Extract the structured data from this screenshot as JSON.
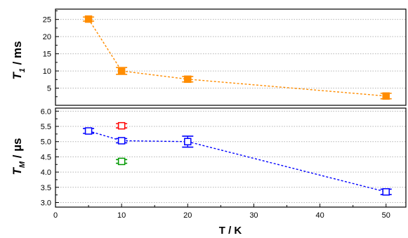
{
  "chart_data": [
    {
      "type": "scatter",
      "panel": "top",
      "ylabel": {
        "main": "T",
        "sub": "1",
        "unit": " / ms"
      },
      "xlim": [
        0,
        53
      ],
      "ylim": [
        0,
        28
      ],
      "yticks": [
        5,
        10,
        15,
        20,
        25
      ],
      "grid": "horizontal-dotted",
      "series": [
        {
          "color": "#ff8c00",
          "marker": "filled-square",
          "line": "dashed",
          "points": [
            {
              "x": 5,
              "y": 25.1,
              "err": 0.6
            },
            {
              "x": 10,
              "y": 10.0,
              "err": 1.0
            },
            {
              "x": 20,
              "y": 7.6,
              "err": 0.8
            },
            {
              "x": 50,
              "y": 2.7,
              "err": 0.8
            }
          ]
        }
      ]
    },
    {
      "type": "scatter",
      "panel": "bottom",
      "xlabel": "T / K",
      "ylabel": {
        "main": "T",
        "sub": "M",
        "unit": " / µs"
      },
      "xlim": [
        0,
        53
      ],
      "ylim": [
        2.85,
        6.1
      ],
      "xticks": [
        0,
        10,
        20,
        30,
        40,
        50
      ],
      "yticks": [
        3.0,
        3.5,
        4.0,
        4.5,
        5.0,
        5.5,
        6.0
      ],
      "grid": "horizontal-dotted",
      "series": [
        {
          "color": "#0000ff",
          "marker": "open-square",
          "line": "dashed",
          "points": [
            {
              "x": 5,
              "y": 5.35,
              "err": 0.08
            },
            {
              "x": 10,
              "y": 5.03,
              "err": 0.07
            },
            {
              "x": 20,
              "y": 5.0,
              "err": 0.18
            },
            {
              "x": 50,
              "y": 3.35,
              "err": 0.09
            }
          ]
        },
        {
          "color": "#ff0000",
          "marker": "open-square",
          "line": "none",
          "points": [
            {
              "x": 10,
              "y": 5.52,
              "err": 0.07
            }
          ]
        },
        {
          "color": "#009900",
          "marker": "open-square",
          "line": "none",
          "points": [
            {
              "x": 10,
              "y": 4.35,
              "err": 0.06
            }
          ]
        }
      ]
    }
  ]
}
